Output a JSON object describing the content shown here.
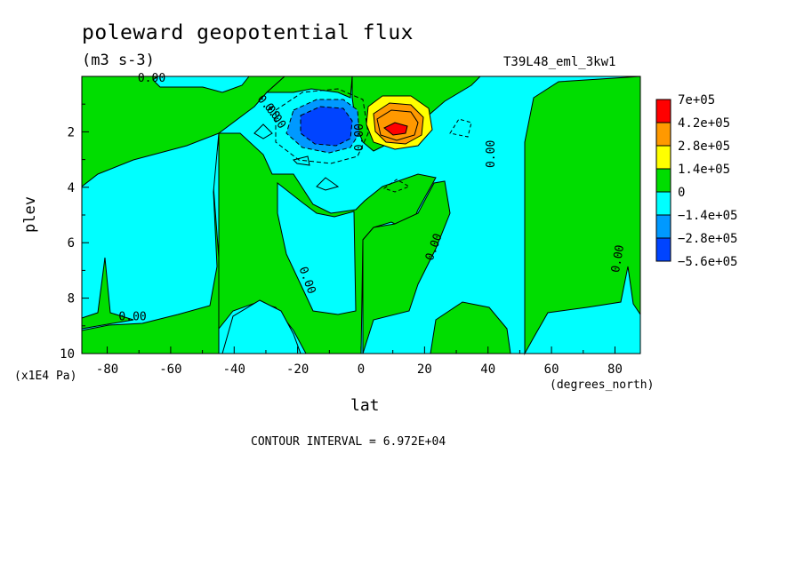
{
  "chart_data": {
    "type": "heatmap",
    "title": "poleward geopotential flux",
    "units": "(m3 s-3)",
    "run_label": "T39L48_eml_3kw1",
    "xlabel": "lat",
    "x_units": "(degrees_north)",
    "ylabel": "plev",
    "y_units": "(x1E4 Pa)",
    "xlim": [
      -88,
      88
    ],
    "ylim": [
      10,
      0
    ],
    "x_ticks": [
      "-80",
      "-60",
      "-40",
      "-20",
      "0",
      "20",
      "40",
      "60",
      "80"
    ],
    "x_tick_values": [
      -80,
      -60,
      -40,
      -20,
      0,
      20,
      40,
      60,
      80
    ],
    "y_ticks": [
      "2",
      "4",
      "6",
      "8",
      "10"
    ],
    "y_tick_values": [
      2,
      4,
      6,
      8,
      10
    ],
    "contour_interval": "CONTOUR INTERVAL = 6.972E+04",
    "contour_labels": [
      "0.00",
      "0.00",
      "0.00",
      "0.00",
      "0.00",
      "0.00",
      "0.00",
      "0.00",
      "0.00"
    ],
    "colorbar": {
      "labels": [
        "7e+05",
        "4.2e+05",
        "2.8e+05",
        "1.4e+05",
        "0",
        "−1.4e+05",
        "−2.8e+05",
        "−5.6e+05"
      ],
      "colors": [
        "#ff0000",
        "#ff9900",
        "#ffff00",
        "#00dd00",
        "#00ffff",
        "#0099ff",
        "#0044ff"
      ]
    },
    "features": [
      {
        "kind": "min",
        "lat": -12,
        "plev": 1.8,
        "value": -560000
      },
      {
        "kind": "max",
        "lat": 11,
        "plev": 1.9,
        "value": 700000
      }
    ],
    "colors": {
      "positive_small": "#00dd00",
      "negative_small": "#00ffff"
    }
  }
}
